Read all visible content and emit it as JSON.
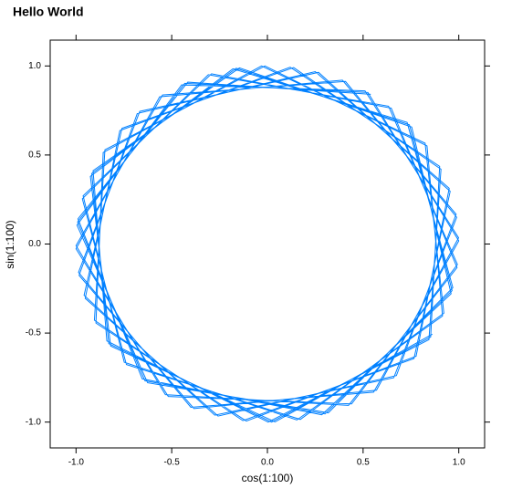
{
  "chart_data": {
    "type": "line",
    "title": "Hello World",
    "x_label": "cos(1:100)",
    "y_label": "sin(1:100)",
    "color": "#0080ff",
    "x": [
      0.54,
      -0.416,
      -0.99,
      -0.654,
      0.284,
      0.96,
      0.754,
      -0.146,
      -0.911,
      -0.839,
      0.004,
      0.844,
      0.907,
      0.137,
      -0.76,
      -0.958,
      -0.275,
      0.66,
      0.989,
      0.408,
      -0.548,
      -1.0,
      -0.533,
      0.424,
      0.991,
      0.647,
      -0.292,
      -0.963,
      -0.748,
      0.154,
      0.915,
      0.834,
      -0.013,
      -0.849,
      -0.904,
      -0.128,
      0.766,
      0.955,
      0.267,
      -0.667,
      -0.987,
      -0.4,
      0.555,
      1.0,
      0.525,
      -0.432,
      -0.992,
      -0.64,
      0.301,
      0.965,
      0.742,
      -0.163,
      -0.918,
      -0.829,
      0.022,
      0.853,
      0.9,
      0.119,
      -0.771,
      -0.952,
      -0.258,
      0.674,
      0.986,
      0.392,
      -0.563,
      -1.0,
      -0.518,
      0.44,
      0.993,
      0.633,
      -0.309,
      -0.967,
      -0.737,
      0.172,
      0.922,
      0.824,
      -0.031,
      -0.858,
      -0.896,
      -0.11,
      0.777,
      0.95,
      0.25,
      -0.68,
      -0.984,
      -0.384,
      0.57,
      0.999,
      0.51,
      -0.448,
      -0.995,
      -0.626,
      0.318,
      0.969,
      0.73,
      -0.18,
      -0.925,
      -0.819,
      0.04,
      0.862
    ],
    "values": [
      0.841,
      0.909,
      0.141,
      -0.757,
      -0.959,
      -0.279,
      0.657,
      0.989,
      0.412,
      -0.544,
      -1.0,
      -0.537,
      0.42,
      0.991,
      0.65,
      -0.288,
      -0.961,
      -0.751,
      0.15,
      0.913,
      0.837,
      -0.009,
      -0.846,
      -0.906,
      -0.132,
      0.763,
      0.956,
      0.271,
      -0.664,
      -0.988,
      -0.404,
      0.551,
      1.0,
      0.529,
      -0.428,
      -0.992,
      -0.643,
      0.296,
      0.964,
      0.745,
      -0.159,
      -0.917,
      -0.832,
      0.018,
      0.851,
      0.902,
      0.124,
      -0.768,
      -0.954,
      -0.262,
      0.67,
      0.987,
      0.396,
      -0.559,
      -1.0,
      -0.522,
      0.436,
      0.993,
      0.637,
      -0.305,
      -0.966,
      -0.739,
      0.167,
      0.92,
      0.827,
      -0.027,
      -0.856,
      -0.898,
      -0.115,
      0.774,
      0.951,
      0.254,
      -0.677,
      -0.985,
      -0.388,
      0.566,
      1.0,
      0.514,
      -0.444,
      -0.994,
      -0.63,
      0.313,
      0.968,
      0.733,
      -0.176,
      -0.924,
      -0.821,
      0.035,
      0.86,
      0.894,
      0.106,
      -0.779,
      -0.948,
      -0.245,
      0.683,
      0.984,
      0.38,
      -0.573,
      -0.999,
      -0.506
    ],
    "xlim": [
      -1.135,
      1.135
    ],
    "ylim": [
      -1.145,
      1.145
    ],
    "xticks": [
      {
        "value": -1,
        "label": "-1.0"
      },
      {
        "value": -0.5,
        "label": "-0.5"
      },
      {
        "value": 0,
        "label": "0.0"
      },
      {
        "value": 0.5,
        "label": "0.5"
      },
      {
        "value": 1,
        "label": "1.0"
      }
    ],
    "yticks": [
      {
        "value": -1,
        "label": "-1.0"
      },
      {
        "value": -0.5,
        "label": "-0.5"
      },
      {
        "value": 0,
        "label": "0.0"
      },
      {
        "value": 0.5,
        "label": "0.5"
      },
      {
        "value": 1,
        "label": "1.0"
      }
    ]
  }
}
